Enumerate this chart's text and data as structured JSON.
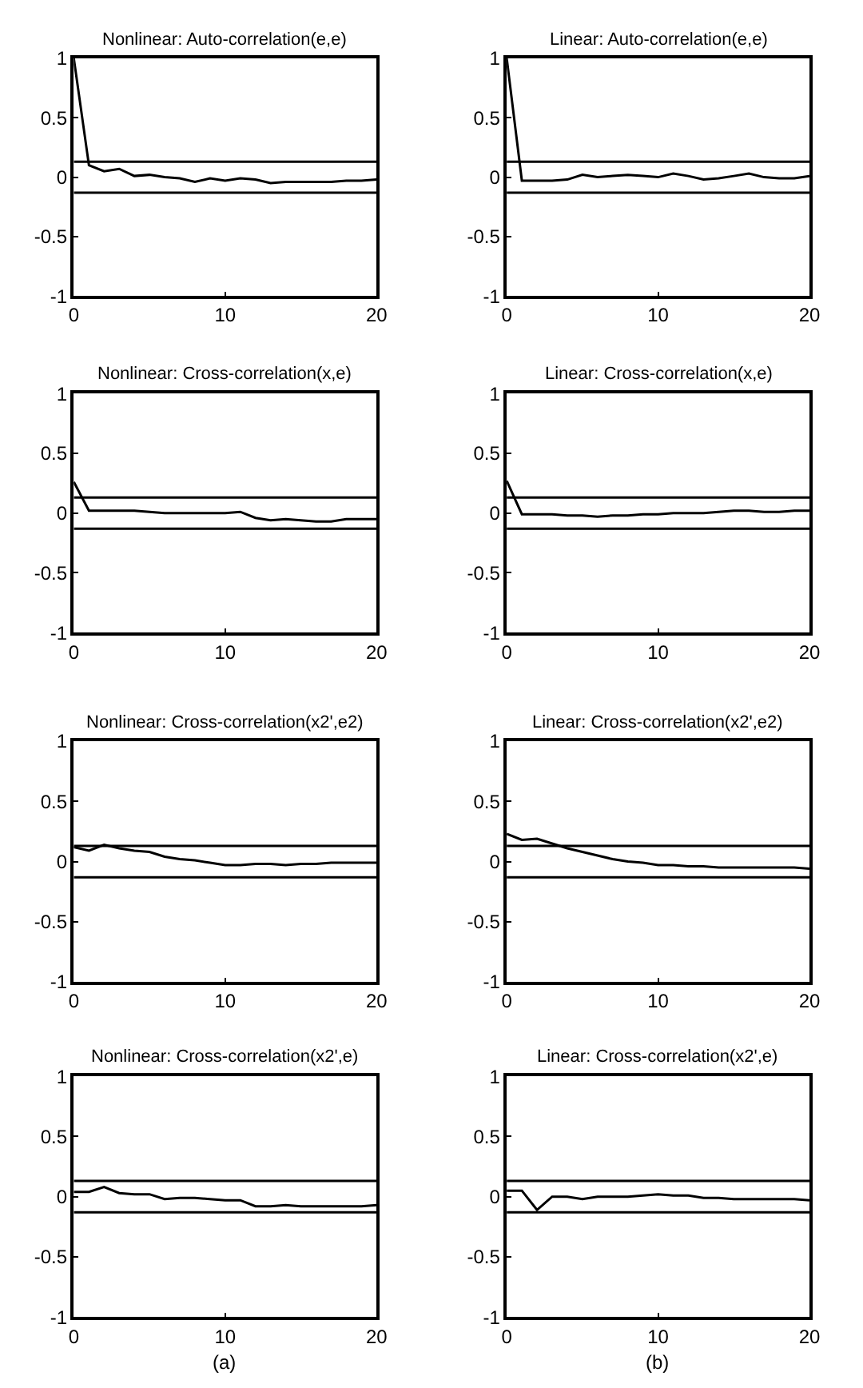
{
  "chart_data": [
    {
      "type": "line",
      "title": "Nonlinear: Auto-correlation(e,e)",
      "x": [
        0,
        1,
        2,
        3,
        4,
        5,
        6,
        7,
        8,
        9,
        10,
        11,
        12,
        13,
        14,
        15,
        16,
        17,
        18,
        19,
        20
      ],
      "series": [
        {
          "color": "#000000",
          "values": [
            1,
            0.1,
            0.05,
            0.07,
            0.01,
            0.02,
            0,
            -0.01,
            -0.04,
            -0.01,
            -0.03,
            -0.01,
            -0.02,
            -0.05,
            -0.04,
            -0.04,
            -0.04,
            -0.04,
            -0.03,
            -0.03,
            -0.02
          ]
        }
      ],
      "xlim": [
        0,
        20
      ],
      "xticks": [
        0,
        10,
        20
      ],
      "ylim": [
        -1,
        1
      ],
      "yticks": [
        -1,
        -0.5,
        0,
        0.5,
        1
      ],
      "ref_lines": [
        {
          "axis": "y",
          "value": 0.13,
          "color": "#000000"
        },
        {
          "axis": "y",
          "value": -0.13,
          "color": "#000000"
        }
      ],
      "marker": "none",
      "line_style": "solid"
    },
    {
      "type": "line",
      "title": "Linear: Auto-correlation(e,e)",
      "x": [
        0,
        1,
        2,
        3,
        4,
        5,
        6,
        7,
        8,
        9,
        10,
        11,
        12,
        13,
        14,
        15,
        16,
        17,
        18,
        19,
        20
      ],
      "series": [
        {
          "color": "#000000",
          "values": [
            1,
            -0.03,
            -0.03,
            -0.03,
            -0.02,
            0.02,
            0,
            0.01,
            0.02,
            0.01,
            0,
            0.03,
            0.01,
            -0.02,
            -0.01,
            0.01,
            0.03,
            0,
            -0.01,
            -0.01,
            0.01
          ]
        }
      ],
      "xlim": [
        0,
        20
      ],
      "xticks": [
        0,
        10,
        20
      ],
      "ylim": [
        -1,
        1
      ],
      "yticks": [
        -1,
        -0.5,
        0,
        0.5,
        1
      ],
      "ref_lines": [
        {
          "axis": "y",
          "value": 0.13,
          "color": "#000000"
        },
        {
          "axis": "y",
          "value": -0.13,
          "color": "#000000"
        }
      ],
      "marker": "none",
      "line_style": "solid"
    },
    {
      "type": "line",
      "title": "Nonlinear: Cross-correlation(x,e)",
      "x": [
        0,
        1,
        2,
        3,
        4,
        5,
        6,
        7,
        8,
        9,
        10,
        11,
        12,
        13,
        14,
        15,
        16,
        17,
        18,
        19,
        20
      ],
      "series": [
        {
          "color": "#000000",
          "values": [
            0.26,
            0.02,
            0.02,
            0.02,
            0.02,
            0.01,
            0,
            0,
            0,
            0,
            0,
            0.01,
            -0.04,
            -0.06,
            -0.05,
            -0.06,
            -0.07,
            -0.07,
            -0.05,
            -0.05,
            -0.05
          ]
        }
      ],
      "xlim": [
        0,
        20
      ],
      "xticks": [
        0,
        10,
        20
      ],
      "ylim": [
        -1,
        1
      ],
      "yticks": [
        -1,
        -0.5,
        0,
        0.5,
        1
      ],
      "ref_lines": [
        {
          "axis": "y",
          "value": 0.13,
          "color": "#000000"
        },
        {
          "axis": "y",
          "value": -0.13,
          "color": "#000000"
        }
      ],
      "marker": "none",
      "line_style": "solid"
    },
    {
      "type": "line",
      "title": "Linear: Cross-correlation(x,e)",
      "x": [
        0,
        1,
        2,
        3,
        4,
        5,
        6,
        7,
        8,
        9,
        10,
        11,
        12,
        13,
        14,
        15,
        16,
        17,
        18,
        19,
        20
      ],
      "series": [
        {
          "color": "#000000",
          "values": [
            0.27,
            -0.01,
            -0.01,
            -0.01,
            -0.02,
            -0.02,
            -0.03,
            -0.02,
            -0.02,
            -0.01,
            -0.01,
            0,
            0,
            0,
            0.01,
            0.02,
            0.02,
            0.01,
            0.01,
            0.02,
            0.02
          ]
        }
      ],
      "xlim": [
        0,
        20
      ],
      "xticks": [
        0,
        10,
        20
      ],
      "ylim": [
        -1,
        1
      ],
      "yticks": [
        -1,
        -0.5,
        0,
        0.5,
        1
      ],
      "ref_lines": [
        {
          "axis": "y",
          "value": 0.13,
          "color": "#000000"
        },
        {
          "axis": "y",
          "value": -0.13,
          "color": "#000000"
        }
      ],
      "marker": "none",
      "line_style": "solid"
    },
    {
      "type": "line",
      "title": "Nonlinear: Cross-correlation(x2',e2)",
      "x": [
        0,
        1,
        2,
        3,
        4,
        5,
        6,
        7,
        8,
        9,
        10,
        11,
        12,
        13,
        14,
        15,
        16,
        17,
        18,
        19,
        20
      ],
      "series": [
        {
          "color": "#000000",
          "values": [
            0.12,
            0.09,
            0.14,
            0.11,
            0.09,
            0.08,
            0.04,
            0.02,
            0.01,
            -0.01,
            -0.03,
            -0.03,
            -0.02,
            -0.02,
            -0.03,
            -0.02,
            -0.02,
            -0.01,
            -0.01,
            -0.01,
            -0.01
          ]
        }
      ],
      "xlim": [
        0,
        20
      ],
      "xticks": [
        0,
        10,
        20
      ],
      "ylim": [
        -1,
        1
      ],
      "yticks": [
        -1,
        -0.5,
        0,
        0.5,
        1
      ],
      "ref_lines": [
        {
          "axis": "y",
          "value": 0.13,
          "color": "#000000"
        },
        {
          "axis": "y",
          "value": -0.13,
          "color": "#000000"
        }
      ],
      "marker": "none",
      "line_style": "solid"
    },
    {
      "type": "line",
      "title": "Linear: Cross-correlation(x2',e2)",
      "x": [
        0,
        1,
        2,
        3,
        4,
        5,
        6,
        7,
        8,
        9,
        10,
        11,
        12,
        13,
        14,
        15,
        16,
        17,
        18,
        19,
        20
      ],
      "series": [
        {
          "color": "#000000",
          "values": [
            0.23,
            0.18,
            0.19,
            0.15,
            0.11,
            0.08,
            0.05,
            0.02,
            0,
            -0.01,
            -0.03,
            -0.03,
            -0.04,
            -0.04,
            -0.05,
            -0.05,
            -0.05,
            -0.05,
            -0.05,
            -0.05,
            -0.06
          ]
        }
      ],
      "xlim": [
        0,
        20
      ],
      "xticks": [
        0,
        10,
        20
      ],
      "ylim": [
        -1,
        1
      ],
      "yticks": [
        -1,
        -0.5,
        0,
        0.5,
        1
      ],
      "ref_lines": [
        {
          "axis": "y",
          "value": 0.13,
          "color": "#000000"
        },
        {
          "axis": "y",
          "value": -0.13,
          "color": "#000000"
        }
      ],
      "marker": "none",
      "line_style": "solid"
    },
    {
      "type": "line",
      "title": "Nonlinear: Cross-correlation(x2',e)",
      "x": [
        0,
        1,
        2,
        3,
        4,
        5,
        6,
        7,
        8,
        9,
        10,
        11,
        12,
        13,
        14,
        15,
        16,
        17,
        18,
        19,
        20
      ],
      "series": [
        {
          "color": "#000000",
          "values": [
            0.04,
            0.04,
            0.08,
            0.03,
            0.02,
            0.02,
            -0.02,
            -0.01,
            -0.01,
            -0.02,
            -0.03,
            -0.03,
            -0.08,
            -0.08,
            -0.07,
            -0.08,
            -0.08,
            -0.08,
            -0.08,
            -0.08,
            -0.07
          ]
        }
      ],
      "xlim": [
        0,
        20
      ],
      "xticks": [
        0,
        10,
        20
      ],
      "ylim": [
        -1,
        1
      ],
      "yticks": [
        -1,
        -0.5,
        0,
        0.5,
        1
      ],
      "ref_lines": [
        {
          "axis": "y",
          "value": 0.13,
          "color": "#000000"
        },
        {
          "axis": "y",
          "value": -0.13,
          "color": "#000000"
        }
      ],
      "annotations": [
        "(a)"
      ],
      "marker": "none",
      "line_style": "solid"
    },
    {
      "type": "line",
      "title": "Linear: Cross-correlation(x2',e)",
      "x": [
        0,
        1,
        2,
        3,
        4,
        5,
        6,
        7,
        8,
        9,
        10,
        11,
        12,
        13,
        14,
        15,
        16,
        17,
        18,
        19,
        20
      ],
      "series": [
        {
          "color": "#000000",
          "values": [
            0.05,
            0.05,
            -0.11,
            0,
            0,
            -0.02,
            0,
            0,
            0,
            0.01,
            0.02,
            0.01,
            0.01,
            -0.01,
            -0.01,
            -0.02,
            -0.02,
            -0.02,
            -0.02,
            -0.02,
            -0.03
          ]
        }
      ],
      "xlim": [
        0,
        20
      ],
      "xticks": [
        0,
        10,
        20
      ],
      "ylim": [
        -1,
        1
      ],
      "yticks": [
        -1,
        -0.5,
        0,
        0.5,
        1
      ],
      "ref_lines": [
        {
          "axis": "y",
          "value": 0.13,
          "color": "#000000"
        },
        {
          "axis": "y",
          "value": -0.13,
          "color": "#000000"
        }
      ],
      "annotations": [
        "(b)"
      ],
      "marker": "none",
      "line_style": "solid"
    }
  ]
}
